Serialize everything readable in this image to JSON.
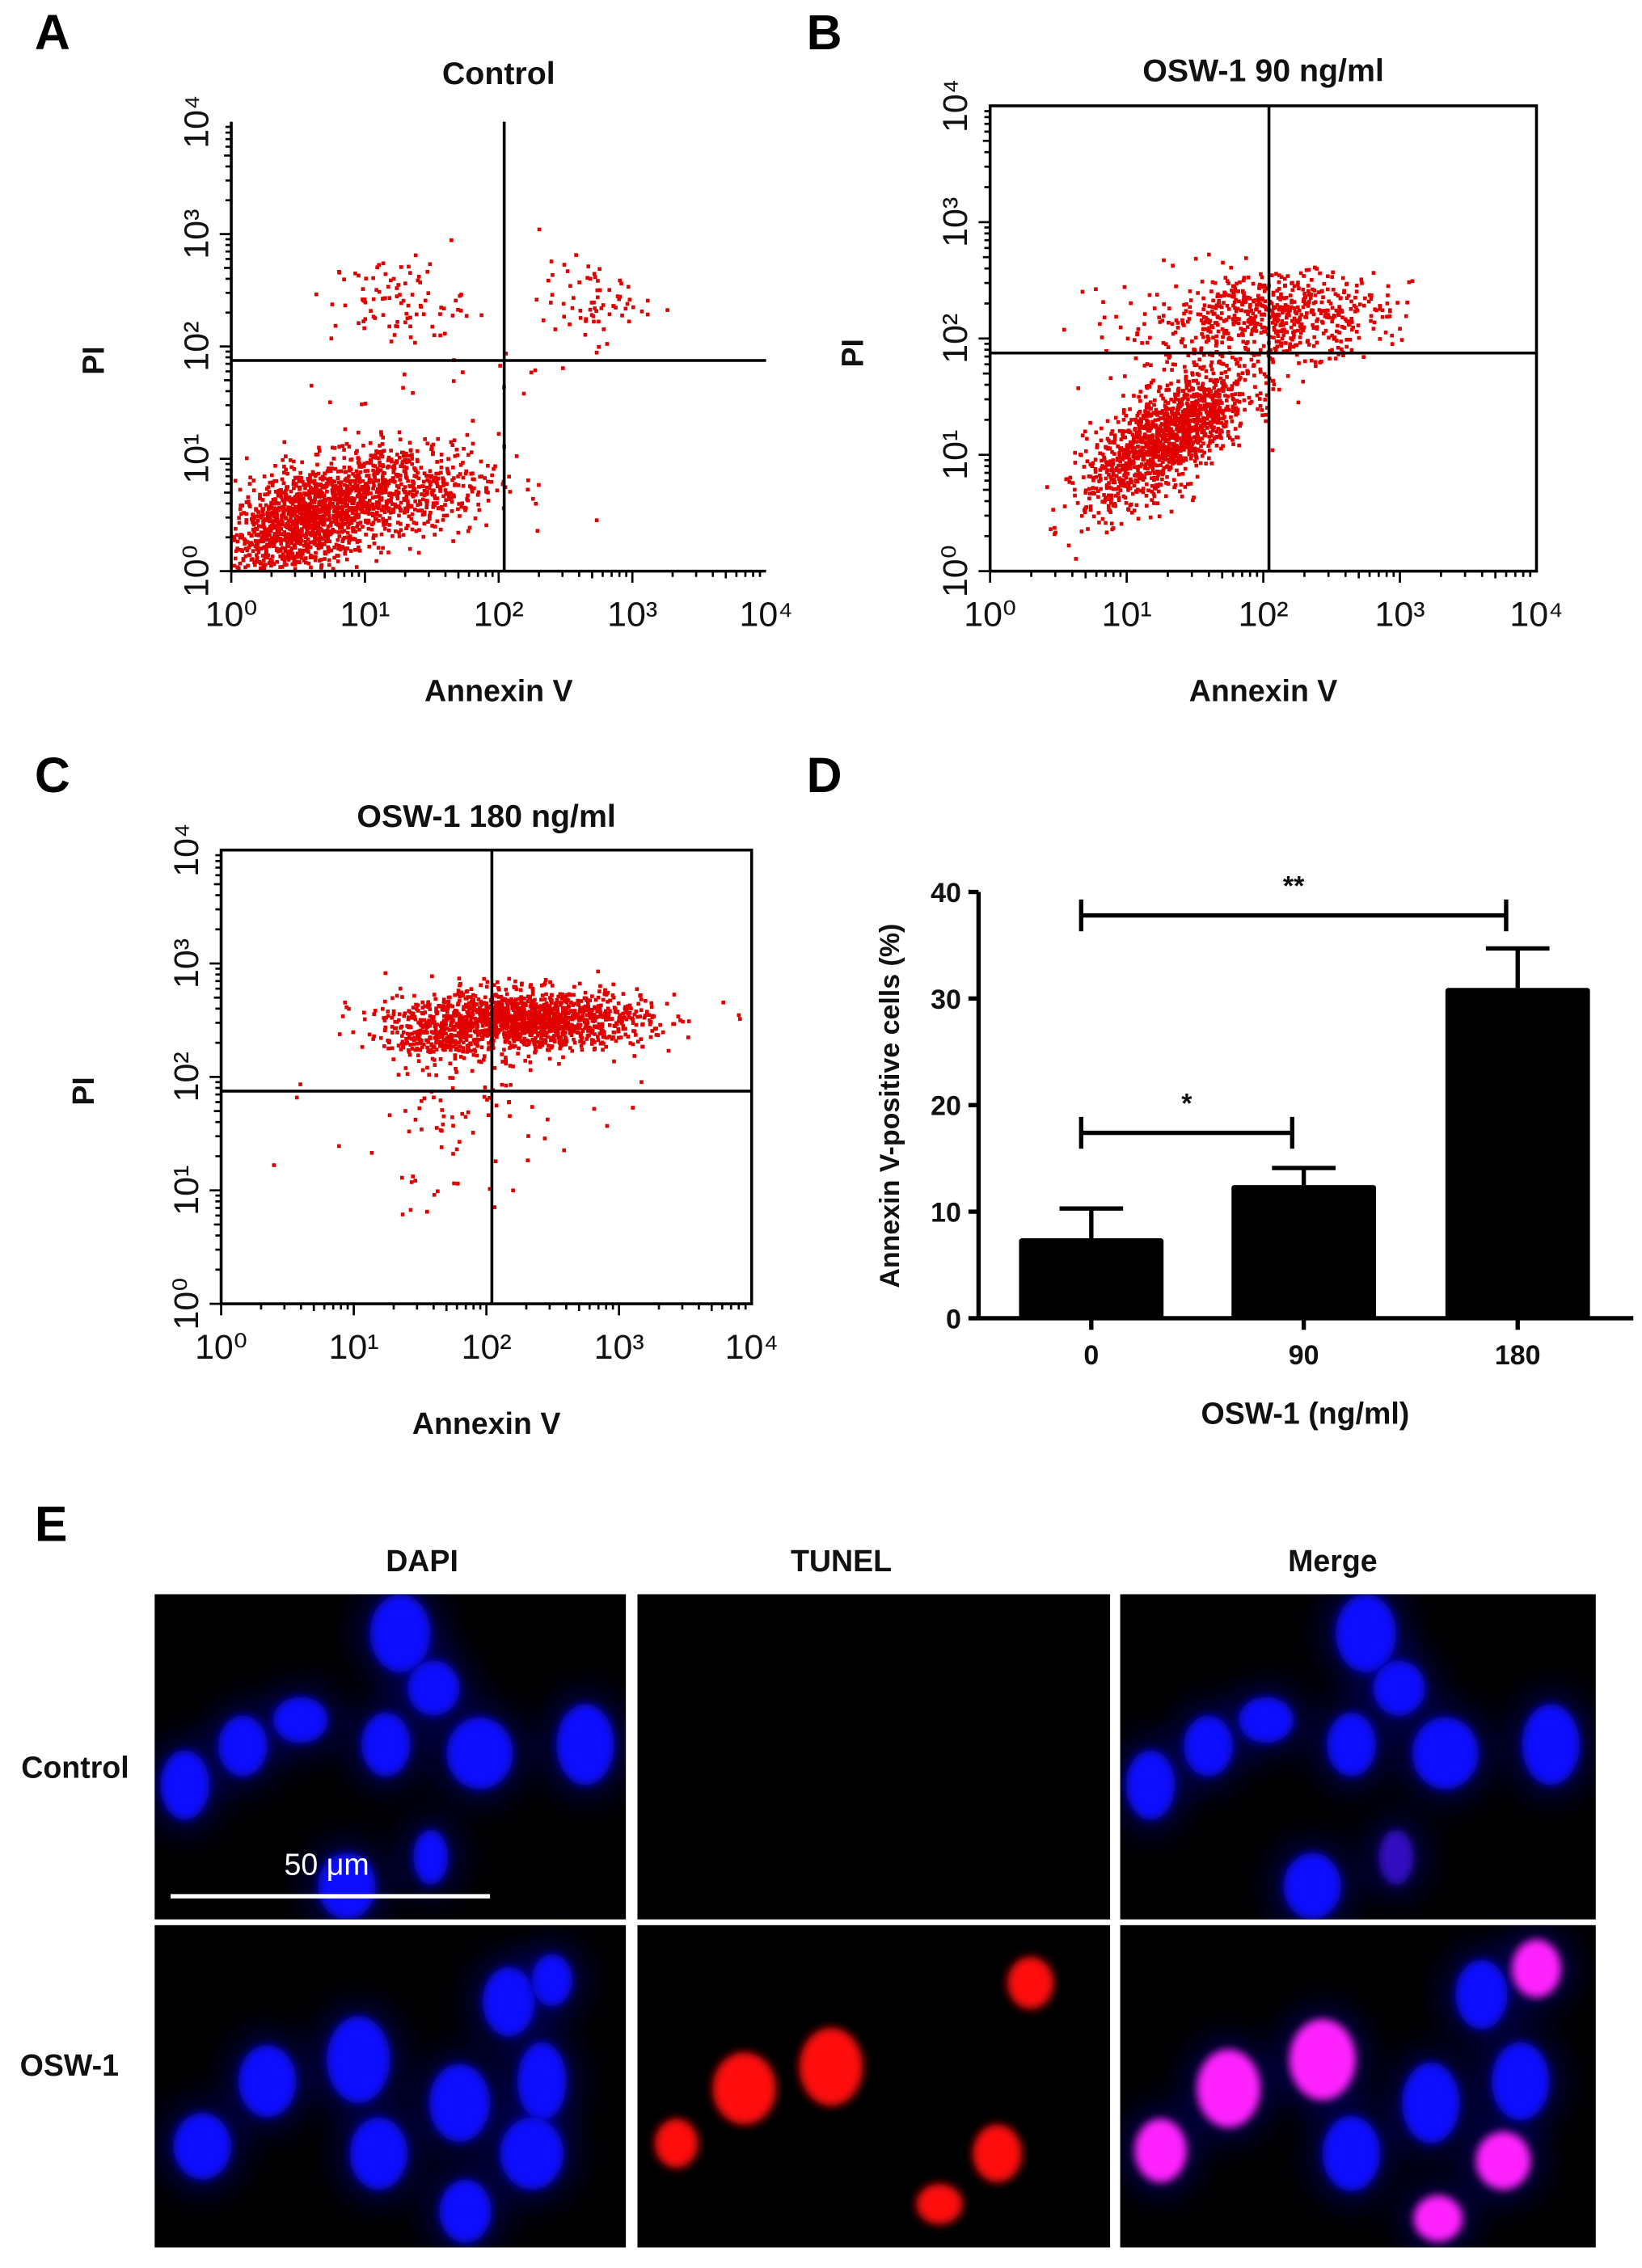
{
  "chart_data": [
    {
      "type": "scatter",
      "panel": "A",
      "title": "Control",
      "xlabel": "Annexin V",
      "ylabel": "PI",
      "xscale": "log",
      "yscale": "log",
      "xlim": [
        1,
        10000
      ],
      "ylim": [
        1,
        10000
      ],
      "xticks": [
        "10⁰",
        "10¹",
        "10²",
        "10³",
        "10⁴"
      ],
      "yticks": [
        "10⁰",
        "10¹",
        "10²",
        "10³",
        "10⁴"
      ],
      "quadrant_gate": {
        "x": 110,
        "y": 75
      },
      "point_color": "#e00000",
      "populations_log10": [
        {
          "cx": 0.55,
          "cy": 0.45,
          "sx": 0.35,
          "sy": 0.28,
          "rho": 0.55,
          "n": 1500
        },
        {
          "cx": 1.3,
          "cy": 0.7,
          "sx": 0.35,
          "sy": 0.22,
          "rho": 0.2,
          "n": 500
        },
        {
          "cx": 1.25,
          "cy": 2.4,
          "sx": 0.25,
          "sy": 0.2,
          "rho": 0,
          "n": 90
        },
        {
          "cx": 2.7,
          "cy": 2.4,
          "sx": 0.2,
          "sy": 0.18,
          "rho": 0,
          "n": 70
        },
        {
          "cx": 1.6,
          "cy": 1.6,
          "sx": 0.5,
          "sy": 0.45,
          "rho": 0,
          "n": 25
        }
      ]
    },
    {
      "type": "scatter",
      "panel": "B",
      "title": "OSW-1 90 ng/ml",
      "xlabel": "Annexin V",
      "ylabel": "PI",
      "xscale": "log",
      "yscale": "log",
      "xlim": [
        1,
        10000
      ],
      "ylim": [
        1,
        10000
      ],
      "xticks": [
        "10⁰",
        "10¹",
        "10²",
        "10³",
        "10⁴"
      ],
      "yticks": [
        "10⁰",
        "10¹",
        "10²",
        "10³",
        "10⁴"
      ],
      "quadrant_gate": {
        "x": 110,
        "y": 75
      },
      "point_color": "#e00000",
      "populations_log10": [
        {
          "cx": 1.3,
          "cy": 1.15,
          "sx": 0.3,
          "sy": 0.3,
          "rho": 0.7,
          "n": 1400
        },
        {
          "cx": 2.1,
          "cy": 2.2,
          "sx": 0.4,
          "sy": 0.18,
          "rho": 0.1,
          "n": 600
        },
        {
          "cx": 1.3,
          "cy": 2.0,
          "sx": 0.35,
          "sy": 0.3,
          "rho": 0,
          "n": 80
        }
      ]
    },
    {
      "type": "scatter",
      "panel": "C",
      "title": "OSW-1 180 ng/ml",
      "xlabel": "Annexin V",
      "ylabel": "PI",
      "xscale": "log",
      "yscale": "log",
      "xlim": [
        1,
        10000
      ],
      "ylim": [
        1,
        10000
      ],
      "xticks": [
        "10⁰",
        "10¹",
        "10²",
        "10³",
        "10⁴"
      ],
      "yticks": [
        "10⁰",
        "10¹",
        "10²",
        "10³",
        "10⁴"
      ],
      "quadrant_gate": {
        "x": 110,
        "y": 75
      },
      "point_color": "#e00000",
      "populations_log10": [
        {
          "cx": 2.3,
          "cy": 2.5,
          "sx": 0.45,
          "sy": 0.13,
          "rho": 0,
          "n": 1500
        },
        {
          "cx": 1.6,
          "cy": 2.35,
          "sx": 0.2,
          "sy": 0.12,
          "rho": 0,
          "n": 200
        },
        {
          "cx": 1.8,
          "cy": 1.6,
          "sx": 0.5,
          "sy": 0.4,
          "rho": 0.2,
          "n": 90
        }
      ]
    },
    {
      "type": "bar",
      "panel": "D",
      "title": "",
      "categories": [
        "0",
        "90",
        "180"
      ],
      "values": [
        7.5,
        12.5,
        31.0
      ],
      "error_upper": [
        10.3,
        14.1,
        34.7
      ],
      "xlabel": "OSW-1 (ng/ml)",
      "ylabel": "Annexin V-positive cells (%)",
      "ylim": [
        0,
        40
      ],
      "yticks": [
        "0",
        "10",
        "20",
        "30",
        "40"
      ],
      "bar_color": "#000000",
      "significance": [
        {
          "from": "0",
          "to": "90",
          "level": 17.4,
          "label": "*"
        },
        {
          "from": "0",
          "to": "180",
          "level": 37.8,
          "label": "**"
        }
      ]
    }
  ],
  "panels": {
    "a": "A",
    "b": "B",
    "c": "C",
    "d": "D",
    "e": "E"
  },
  "tunel": {
    "columns": [
      "DAPI",
      "TUNEL",
      "Merge"
    ],
    "rows": [
      "Control",
      "OSW-1"
    ],
    "scale_bar": "50 μm",
    "colors": {
      "dapi": "#1010ff",
      "tunel": "#ff1010",
      "merge": "#ff20ff"
    }
  }
}
